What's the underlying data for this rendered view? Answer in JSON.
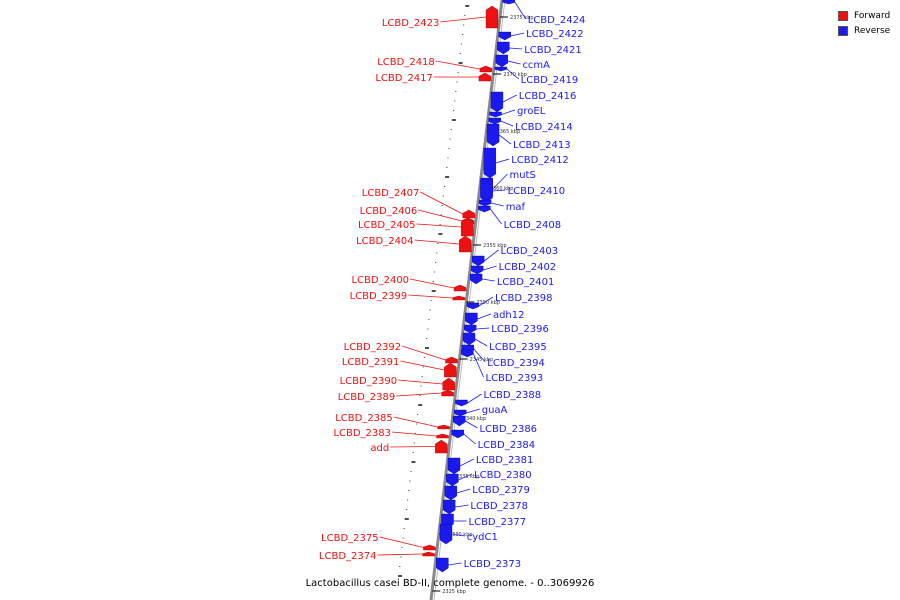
{
  "colors": {
    "forward": "#ee1111",
    "reverse": "#1a1aee",
    "backbone": "#888888",
    "leader": "#222222"
  },
  "legend": {
    "forward_label": "Forward",
    "reverse_label": "Reverse"
  },
  "caption": "Lactobacillus casei BD-II, complete genome. - 0..3069926",
  "scale_unit": "kbp",
  "ticks": [
    2375,
    2370,
    2365,
    2360,
    2355,
    2350,
    2345,
    2340,
    2335,
    2330,
    2325
  ],
  "forward_genes": [
    "LCBD_2423",
    "LCBD_2418",
    "LCBD_2417",
    "LCBD_2407",
    "LCBD_2406",
    "LCBD_2405",
    "LCBD_2404",
    "LCBD_2400",
    "LCBD_2399",
    "LCBD_2392",
    "LCBD_2391",
    "LCBD_2390",
    "LCBD_2389",
    "LCBD_2385",
    "LCBD_2383",
    "add",
    "LCBD_2375",
    "LCBD_2374"
  ],
  "reverse_genes": [
    "LCBD_2424",
    "LCBD_2422",
    "LCBD_2421",
    "ccmA",
    "LCBD_2419",
    "LCBD_2416",
    "groEL",
    "LCBD_2414",
    "LCBD_2413",
    "LCBD_2412",
    "mutS",
    "LCBD_2410",
    "maf",
    "LCBD_2408",
    "LCBD_2403",
    "LCBD_2402",
    "LCBD_2401",
    "LCBD_2398",
    "adh12",
    "LCBD_2396",
    "LCBD_2395",
    "LCBD_2394",
    "LCBD_2393",
    "LCBD_2388",
    "guaA",
    "LCBD_2386",
    "LCBD_2384",
    "LCBD_2381",
    "LCBD_2380",
    "LCBD_2379",
    "LCBD_2378",
    "LCBD_2377",
    "cydC1",
    "LCBD_2373"
  ]
}
